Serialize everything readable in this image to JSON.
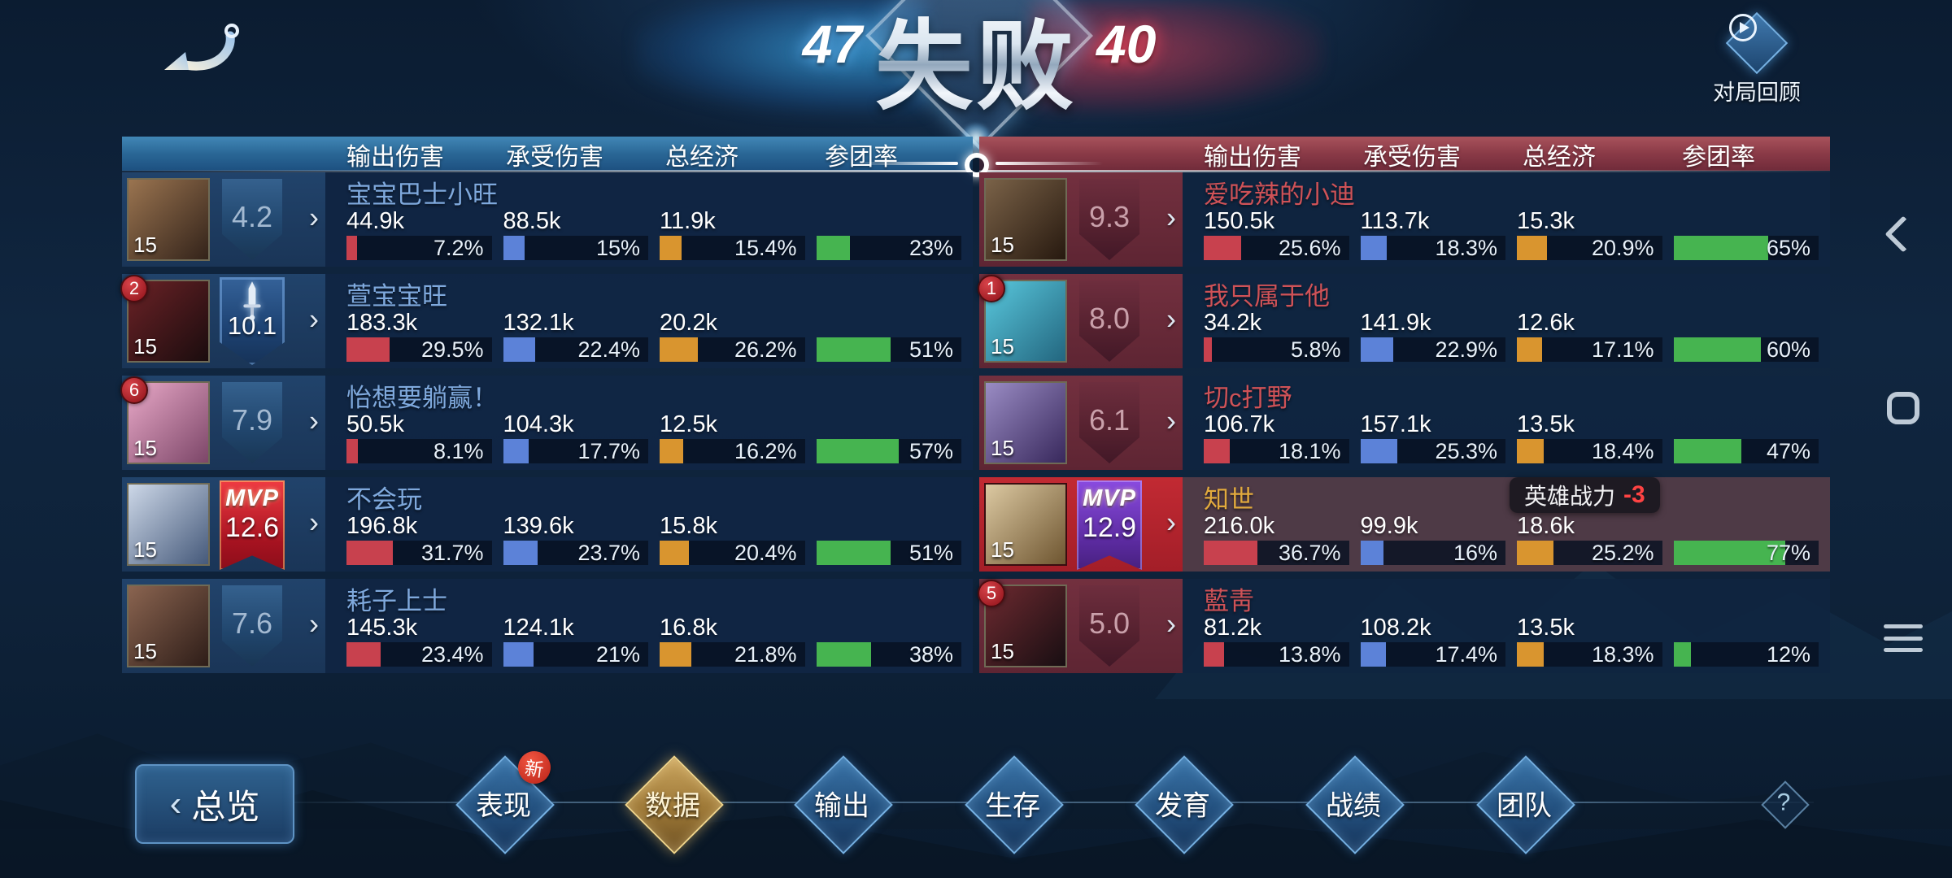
{
  "header": {
    "result_title": "失败",
    "left_score": "47",
    "right_score": "40",
    "replay_label": "对局回顾",
    "mvp_label": "MVP"
  },
  "columns": [
    "输出伤害",
    "承受伤害",
    "总经济",
    "参团率"
  ],
  "colors": {
    "bars": [
      "#c8414e",
      "#5c82d8",
      "#d9952f",
      "#46b450"
    ],
    "left_name": "#7fa9dd",
    "right_name": "#cf5257",
    "highlight_name": "#e2aa3d",
    "left_team_accent": "#2a6796",
    "right_team_accent": "#8a3a47"
  },
  "teams": {
    "left": {
      "players": [
        {
          "name": "宝宝巴士小旺",
          "level": "15",
          "badge": {
            "type": "pennant",
            "rating": "4.2"
          },
          "avatar_colors": [
            "#9a7450",
            "#33231a"
          ],
          "stats": [
            {
              "value": "44.9k",
              "pct": "7.2%",
              "pct_num": 7.2
            },
            {
              "value": "88.5k",
              "pct": "15%",
              "pct_num": 15
            },
            {
              "value": "11.9k",
              "pct": "15.4%",
              "pct_num": 15.4
            },
            {
              "pct": "23%",
              "pct_num": 23
            }
          ]
        },
        {
          "name": "萱宝宝旺",
          "level": "15",
          "rank": "2",
          "badge": {
            "type": "sword",
            "rating": "10.1"
          },
          "avatar_colors": [
            "#6b2226",
            "#1a0c0e"
          ],
          "stats": [
            {
              "value": "183.3k",
              "pct": "29.5%",
              "pct_num": 29.5
            },
            {
              "value": "132.1k",
              "pct": "22.4%",
              "pct_num": 22.4
            },
            {
              "value": "20.2k",
              "pct": "26.2%",
              "pct_num": 26.2
            },
            {
              "pct": "51%",
              "pct_num": 51
            }
          ]
        },
        {
          "name": "怡想要躺赢！",
          "level": "15",
          "rank": "6",
          "badge": {
            "type": "pennant",
            "rating": "7.9"
          },
          "avatar_colors": [
            "#e9a9c8",
            "#7c4668"
          ],
          "stats": [
            {
              "value": "50.5k",
              "pct": "8.1%",
              "pct_num": 8.1
            },
            {
              "value": "104.3k",
              "pct": "17.7%",
              "pct_num": 17.7
            },
            {
              "value": "12.5k",
              "pct": "16.2%",
              "pct_num": 16.2
            },
            {
              "pct": "57%",
              "pct_num": 57
            }
          ]
        },
        {
          "name": "不会玩",
          "level": "15",
          "badge": {
            "type": "mvp",
            "color": "red",
            "rating": "12.6"
          },
          "avatar_colors": [
            "#cdd8e8",
            "#45597a"
          ],
          "stats": [
            {
              "value": "196.8k",
              "pct": "31.7%",
              "pct_num": 31.7
            },
            {
              "value": "139.6k",
              "pct": "23.7%",
              "pct_num": 23.7
            },
            {
              "value": "15.8k",
              "pct": "20.4%",
              "pct_num": 20.4
            },
            {
              "pct": "51%",
              "pct_num": 51
            }
          ]
        },
        {
          "name": "耗子上士",
          "level": "15",
          "badge": {
            "type": "pennant",
            "rating": "7.6"
          },
          "avatar_colors": [
            "#8a6450",
            "#2e1d18"
          ],
          "stats": [
            {
              "value": "145.3k",
              "pct": "23.4%",
              "pct_num": 23.4
            },
            {
              "value": "124.1k",
              "pct": "21%",
              "pct_num": 21
            },
            {
              "value": "16.8k",
              "pct": "21.8%",
              "pct_num": 21.8
            },
            {
              "pct": "38%",
              "pct_num": 38
            }
          ]
        }
      ]
    },
    "right": {
      "players": [
        {
          "name": "爱吃辣的小迪",
          "level": "15",
          "badge": {
            "type": "pennant",
            "rating": "9.3"
          },
          "avatar_colors": [
            "#7a6248",
            "#27190f"
          ],
          "stats": [
            {
              "value": "150.5k",
              "pct": "25.6%",
              "pct_num": 25.6
            },
            {
              "value": "113.7k",
              "pct": "18.3%",
              "pct_num": 18.3
            },
            {
              "value": "15.3k",
              "pct": "20.9%",
              "pct_num": 20.9
            },
            {
              "pct": "65%",
              "pct_num": 65
            }
          ]
        },
        {
          "name": "我只属于他",
          "level": "15",
          "rank": "1",
          "badge": {
            "type": "pennant",
            "rating": "8.0"
          },
          "avatar_colors": [
            "#59c8dd",
            "#23667f"
          ],
          "stats": [
            {
              "value": "34.2k",
              "pct": "5.8%",
              "pct_num": 5.8
            },
            {
              "value": "141.9k",
              "pct": "22.9%",
              "pct_num": 22.9
            },
            {
              "value": "12.6k",
              "pct": "17.1%",
              "pct_num": 17.1
            },
            {
              "pct": "60%",
              "pct_num": 60
            }
          ]
        },
        {
          "name": "切c打野",
          "level": "15",
          "badge": {
            "type": "pennant",
            "rating": "6.1"
          },
          "avatar_colors": [
            "#9a8cc4",
            "#38285c"
          ],
          "stats": [
            {
              "value": "106.7k",
              "pct": "18.1%",
              "pct_num": 18.1
            },
            {
              "value": "157.1k",
              "pct": "25.3%",
              "pct_num": 25.3
            },
            {
              "value": "13.5k",
              "pct": "18.4%",
              "pct_num": 18.4
            },
            {
              "pct": "47%",
              "pct_num": 47
            }
          ]
        },
        {
          "name": "知世",
          "level": "15",
          "highlight": true,
          "name_color": "#e2aa3d",
          "badge": {
            "type": "mvp",
            "color": "purple",
            "rating": "12.9"
          },
          "tooltip": {
            "label": "英雄战力",
            "value": "-3"
          },
          "avatar_colors": [
            "#dcc9a2",
            "#6e5530"
          ],
          "stats": [
            {
              "value": "216.0k",
              "pct": "36.7%",
              "pct_num": 36.7
            },
            {
              "value": "99.9k",
              "pct": "16%",
              "pct_num": 16
            },
            {
              "value": "18.6k",
              "pct": "25.2%",
              "pct_num": 25.2
            },
            {
              "pct": "77%",
              "pct_num": 77
            }
          ]
        },
        {
          "name": "藍靑",
          "level": "15",
          "rank": "5",
          "badge": {
            "type": "pennant",
            "rating": "5.0"
          },
          "avatar_colors": [
            "#6d2a30",
            "#180e12"
          ],
          "stats": [
            {
              "value": "81.2k",
              "pct": "13.8%",
              "pct_num": 13.8
            },
            {
              "value": "108.2k",
              "pct": "17.4%",
              "pct_num": 17.4
            },
            {
              "value": "13.5k",
              "pct": "18.3%",
              "pct_num": 18.3
            },
            {
              "pct": "12%",
              "pct_num": 12
            }
          ]
        }
      ]
    }
  },
  "bottom_nav": {
    "overview_label": "总览",
    "back_glyph": "‹",
    "tabs": [
      {
        "label": "表现",
        "badge": "新"
      },
      {
        "label": "数据",
        "selected": true
      },
      {
        "label": "输出"
      },
      {
        "label": "生存"
      },
      {
        "label": "发育"
      },
      {
        "label": "战绩"
      },
      {
        "label": "团队"
      }
    ],
    "help_label": "?"
  }
}
